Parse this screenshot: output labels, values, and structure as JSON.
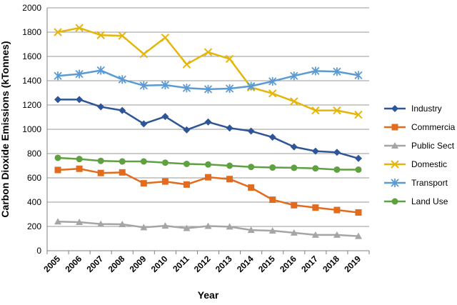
{
  "chart_data": {
    "type": "line",
    "title": "",
    "xlabel": "Year",
    "ylabel": "Carbon Dioxide Emissions (kTonnes)",
    "ylim": [
      0,
      2000
    ],
    "yticks": [
      0,
      200,
      400,
      600,
      800,
      1000,
      1200,
      1400,
      1600,
      1800,
      2000
    ],
    "grid": "horizontal",
    "legend_position": "right",
    "x": [
      "2005",
      "2006",
      "2007",
      "2008",
      "2009",
      "2010",
      "2011",
      "2012",
      "2013",
      "2014",
      "2015",
      "2016",
      "2017",
      "2018",
      "2019"
    ],
    "series": [
      {
        "name": "Industry",
        "color": "#2E5597",
        "marker": "diamond",
        "values": [
          1245,
          1245,
          1185,
          1155,
          1045,
          1105,
          995,
          1060,
          1010,
          985,
          935,
          855,
          820,
          810,
          760
        ]
      },
      {
        "name": "Commercial",
        "legend_text": "Commercia",
        "color": "#E36B1E",
        "marker": "square",
        "values": [
          665,
          675,
          640,
          645,
          555,
          570,
          545,
          605,
          590,
          520,
          420,
          375,
          355,
          335,
          315
        ]
      },
      {
        "name": "Public Sector",
        "legend_text": "Public Sect",
        "color": "#A5A5A5",
        "marker": "triangle",
        "values": [
          240,
          235,
          220,
          218,
          192,
          205,
          185,
          203,
          198,
          170,
          165,
          148,
          130,
          130,
          120
        ]
      },
      {
        "name": "Domestic",
        "color": "#E5B50A",
        "marker": "x",
        "values": [
          1800,
          1835,
          1775,
          1770,
          1620,
          1755,
          1535,
          1635,
          1580,
          1345,
          1295,
          1230,
          1155,
          1155,
          1120
        ]
      },
      {
        "name": "Transport",
        "color": "#5B9BD5",
        "marker": "star",
        "values": [
          1440,
          1455,
          1485,
          1410,
          1360,
          1365,
          1340,
          1330,
          1335,
          1355,
          1395,
          1440,
          1480,
          1475,
          1445
        ]
      },
      {
        "name": "Land Use",
        "color": "#5FA140",
        "marker": "circle",
        "values": [
          765,
          755,
          740,
          735,
          735,
          725,
          715,
          710,
          700,
          690,
          685,
          683,
          678,
          668,
          668
        ]
      }
    ]
  }
}
